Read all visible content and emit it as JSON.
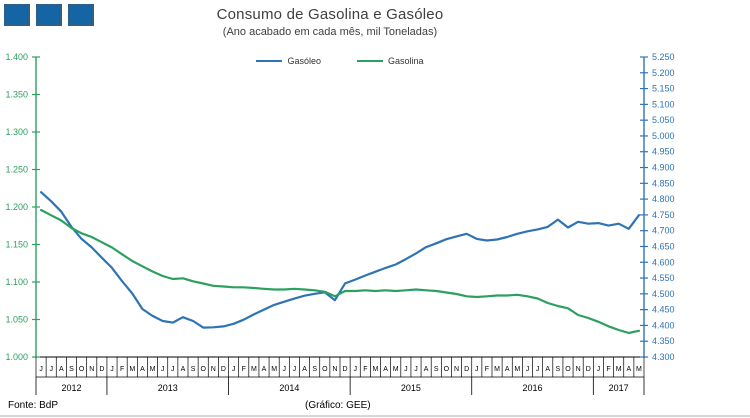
{
  "header": {
    "title": "Consumo de Gasolina e Gasóleo",
    "subtitle": "(Ano acabado em cada mês,  mil Toneladas)"
  },
  "logo": {
    "square_count": 3,
    "fill": "#1565A5",
    "border": "#2F5E86"
  },
  "legend": [
    {
      "id": "gasoleo",
      "label": "Gasóleo",
      "color": "#2E74B5"
    },
    {
      "id": "gasolina",
      "label": "Gasolina",
      "color": "#2BA05F"
    }
  ],
  "footer": {
    "source": "Fonte: BdP",
    "credit": "(Gráfico:  GEE)"
  },
  "chart_data": {
    "type": "line",
    "title": "Consumo de Gasolina e Gasóleo",
    "subtitle": "(Ano acabado em cada mês, mil Toneladas)",
    "unit": "mil Toneladas (rolling 12-month total)",
    "grid": false,
    "legend_position": "top",
    "x_months": [
      "J",
      "J",
      "A",
      "S",
      "O",
      "N",
      "D",
      "J",
      "F",
      "M",
      "A",
      "M",
      "J",
      "J",
      "A",
      "S",
      "O",
      "N",
      "D",
      "J",
      "F",
      "M",
      "A",
      "M",
      "J",
      "J",
      "A",
      "S",
      "O",
      "N",
      "D",
      "J",
      "F",
      "M",
      "A",
      "M",
      "J",
      "J",
      "A",
      "S",
      "O",
      "N",
      "D",
      "J",
      "F",
      "M",
      "A",
      "M",
      "J",
      "J",
      "A",
      "S",
      "O",
      "N",
      "D",
      "J",
      "F",
      "M",
      "A",
      "M"
    ],
    "x_years": [
      {
        "label": "2012",
        "months": 7
      },
      {
        "label": "2013",
        "months": 12
      },
      {
        "label": "2014",
        "months": 12
      },
      {
        "label": "2015",
        "months": 12
      },
      {
        "label": "2016",
        "months": 12
      },
      {
        "label": "2017",
        "months": 5
      }
    ],
    "left_axis": {
      "series": "Gasolina",
      "color": "#2BA05F",
      "min": 1000,
      "max": 1400,
      "tick_step": 50,
      "tick_labels": [
        "1.400",
        "1.350",
        "1.300",
        "1.250",
        "1.200",
        "1.150",
        "1.100",
        "1.050",
        "1.000"
      ]
    },
    "right_axis": {
      "series": "Gasóleo",
      "color": "#2E74B5",
      "min": 4300,
      "max": 5250,
      "tick_step": 50,
      "tick_labels": [
        "5.250",
        "5.200",
        "5.150",
        "5.100",
        "5.050",
        "5.000",
        "4.950",
        "4.900",
        "4.850",
        "4.800",
        "4.750",
        "4.700",
        "4.650",
        "4.600",
        "4.550",
        "4.500",
        "4.450",
        "4.400",
        "4.350",
        "4.300"
      ]
    },
    "x_axis_color": "#000000",
    "series": [
      {
        "id": "gasoleo-line",
        "name": "Gasóleo",
        "axis": "right",
        "color": "#2E74B5",
        "values": [
          4822,
          4793,
          4760,
          4712,
          4674,
          4647,
          4614,
          4582,
          4540,
          4501,
          4452,
          4430,
          4414,
          4409,
          4426,
          4414,
          4393,
          4394,
          4397,
          4405,
          4418,
          4435,
          4450,
          4465,
          4475,
          4485,
          4494,
          4500,
          4505,
          4480,
          4533,
          4545,
          4558,
          4570,
          4582,
          4593,
          4610,
          4628,
          4648,
          4660,
          4673,
          4682,
          4690,
          4674,
          4669,
          4672,
          4680,
          4690,
          4698,
          4704,
          4712,
          4735,
          4710,
          4728,
          4722,
          4724,
          4716,
          4722,
          4706,
          4749
        ]
      },
      {
        "id": "gasolina-line",
        "name": "Gasolina",
        "axis": "left",
        "color": "#2BA05F",
        "values": [
          1196,
          1189,
          1182,
          1172,
          1165,
          1160,
          1153,
          1146,
          1137,
          1128,
          1121,
          1114,
          1108,
          1104,
          1105,
          1101,
          1098,
          1095,
          1094,
          1093,
          1093,
          1092,
          1091,
          1090,
          1090,
          1091,
          1090,
          1089,
          1087,
          1081,
          1088,
          1088,
          1089,
          1088,
          1089,
          1088,
          1089,
          1090,
          1089,
          1088,
          1086,
          1084,
          1081,
          1080,
          1081,
          1082,
          1082,
          1083,
          1081,
          1078,
          1072,
          1068,
          1065,
          1056,
          1052,
          1047,
          1041,
          1036,
          1032,
          1035
        ]
      }
    ]
  }
}
